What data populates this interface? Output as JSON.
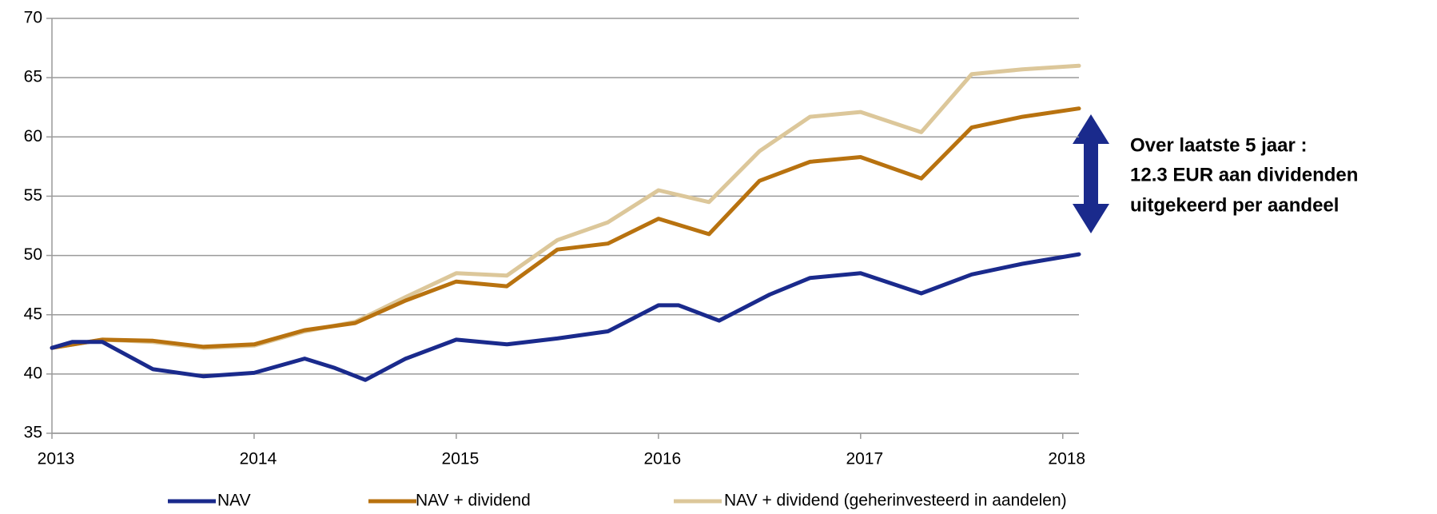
{
  "chart_data": {
    "type": "line",
    "xlim": [
      2013,
      2018.08
    ],
    "xticks": [
      2013,
      2014,
      2015,
      2016,
      2017,
      2018
    ],
    "ylim": [
      35,
      70
    ],
    "yticks": [
      35,
      40,
      45,
      50,
      55,
      60,
      65,
      70
    ],
    "grid": true,
    "legend": "bottom",
    "annotation": [
      "Over laatste 5 jaar :",
      "12.3 EUR aan dividenden",
      "uitgekeerd per aandeel"
    ],
    "annotation_color": "#1a2a8c",
    "series": [
      {
        "name": "NAV",
        "color": "#1a2a8c",
        "x": [
          2013,
          2013.1,
          2013.25,
          2013.5,
          2013.75,
          2014,
          2014.25,
          2014.4,
          2014.55,
          2014.75,
          2015,
          2015.25,
          2015.5,
          2015.75,
          2016,
          2016.1,
          2016.3,
          2016.55,
          2016.75,
          2017,
          2017.3,
          2017.55,
          2017.8,
          2018.08
        ],
        "values": [
          42.2,
          42.7,
          42.7,
          40.4,
          39.8,
          40.1,
          41.3,
          40.5,
          39.5,
          41.3,
          42.9,
          42.5,
          43.0,
          43.6,
          45.8,
          45.8,
          44.5,
          46.7,
          48.1,
          48.5,
          46.8,
          48.4,
          49.3,
          50.1
        ]
      },
      {
        "name": "NAV + dividend",
        "color": "#b8720f",
        "x": [
          2013,
          2013.25,
          2013.5,
          2013.75,
          2014,
          2014.25,
          2014.5,
          2014.75,
          2015,
          2015.25,
          2015.5,
          2015.75,
          2016,
          2016.25,
          2016.5,
          2016.75,
          2017,
          2017.3,
          2017.55,
          2017.8,
          2018.08
        ],
        "values": [
          42.2,
          42.9,
          42.8,
          42.3,
          42.5,
          43.7,
          44.3,
          46.2,
          47.8,
          47.4,
          50.5,
          51.0,
          53.1,
          51.8,
          56.3,
          57.9,
          58.3,
          56.5,
          60.8,
          61.7,
          62.4
        ]
      },
      {
        "name": "NAV + dividend (geherinvesteerd in aandelen)",
        "color": "#dcc79a",
        "x": [
          2013,
          2013.25,
          2013.5,
          2013.75,
          2014,
          2014.25,
          2014.5,
          2014.75,
          2015,
          2015.25,
          2015.5,
          2015.75,
          2016,
          2016.25,
          2016.5,
          2016.75,
          2017,
          2017.3,
          2017.55,
          2017.8,
          2018.08
        ],
        "values": [
          42.2,
          42.9,
          42.7,
          42.2,
          42.4,
          43.6,
          44.4,
          46.5,
          48.5,
          48.3,
          51.3,
          52.8,
          55.5,
          54.5,
          58.8,
          61.7,
          62.1,
          60.4,
          65.3,
          65.7,
          66.0
        ]
      }
    ]
  }
}
